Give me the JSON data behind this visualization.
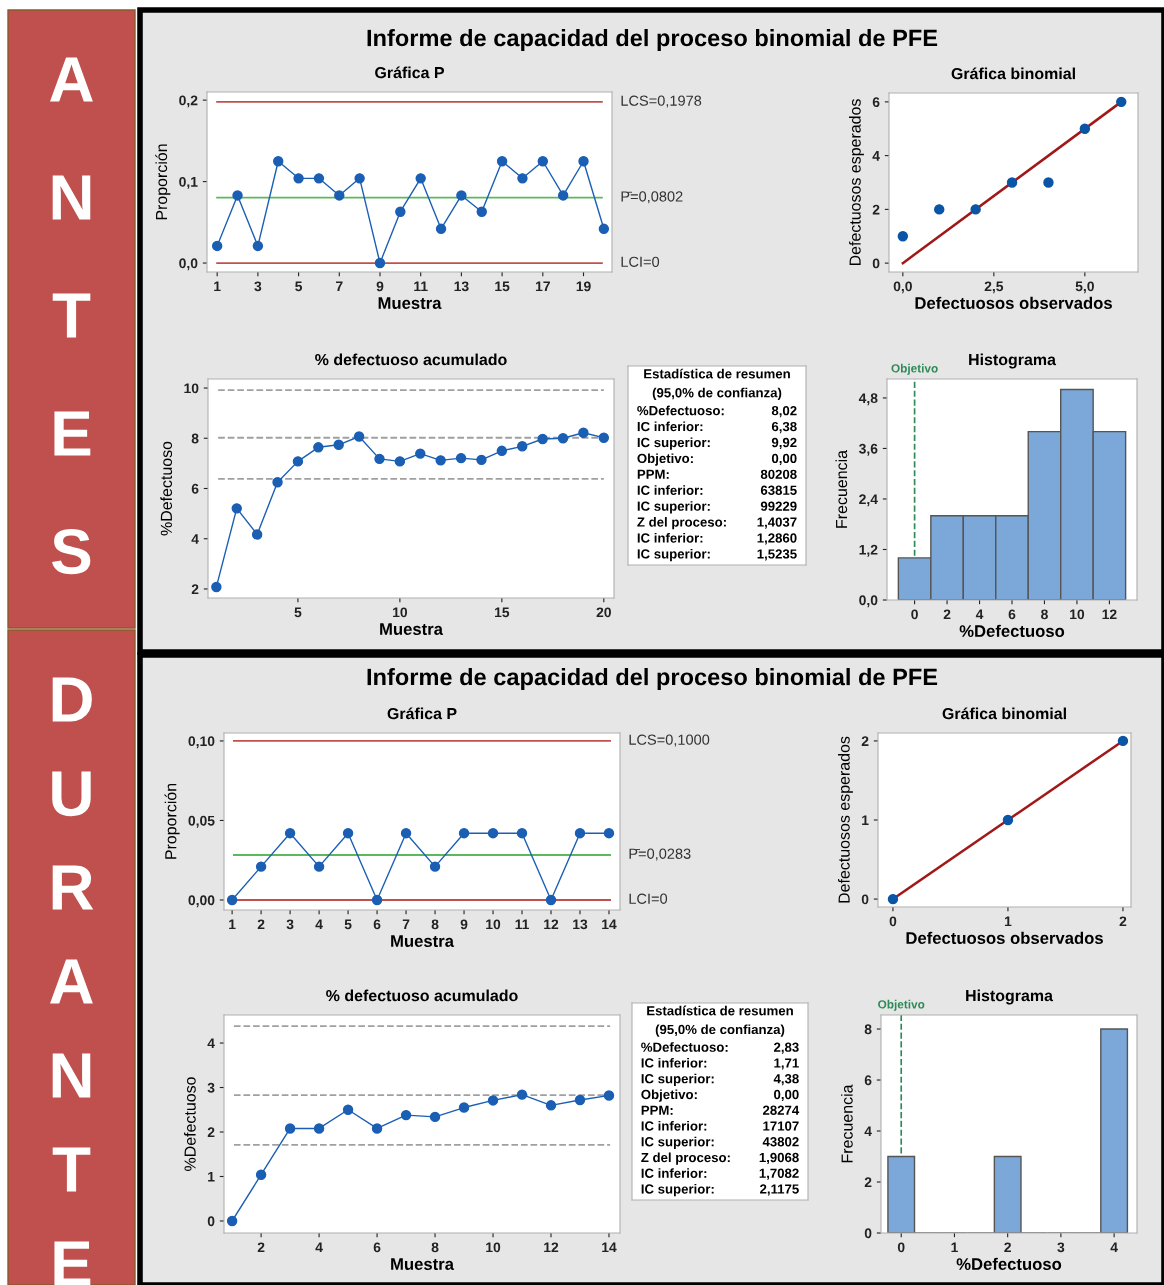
{
  "chart_data": [
    {
      "type": "other",
      "title": "Informe de capacidad del proceso binomial de PFE",
      "annotations": [
        "ANTES"
      ]
    },
    {
      "type": "line",
      "title": "Gráfica P",
      "xlabel": "Muestra",
      "ylabel": "Proporción",
      "marker": "circle",
      "line_style": "solid",
      "x": [
        1,
        2,
        3,
        4,
        5,
        6,
        7,
        8,
        9,
        10,
        11,
        12,
        13,
        14,
        15,
        16,
        17,
        18,
        19,
        20
      ],
      "series": [
        {
          "color": "#1a5fb4",
          "values": [
            0.021,
            0.083,
            0.021,
            0.125,
            0.104,
            0.104,
            0.083,
            0.104,
            0.0,
            0.063,
            0.104,
            0.042,
            0.083,
            0.063,
            0.125,
            0.104,
            0.125,
            0.083,
            0.125,
            0.042
          ]
        }
      ],
      "xlim": [
        0.5,
        20.4
      ],
      "ylim": [
        -0.011,
        0.21
      ],
      "xticks": [
        1,
        3,
        5,
        7,
        9,
        11,
        13,
        15,
        17,
        19
      ],
      "yticks": [
        {
          "value": 0,
          "label": "0,0"
        },
        {
          "value": 0.1,
          "label": "0,1"
        },
        {
          "value": 0.2,
          "label": "0,2"
        }
      ],
      "ref_lines": [
        {
          "axis": "y",
          "value": 0.1978,
          "label": "LCS=0,1978",
          "color": "#c0504d"
        },
        {
          "axis": "y",
          "value": 0.0802,
          "label": "P̄=0,0802",
          "color": "#5cb85c"
        },
        {
          "axis": "y",
          "value": 0,
          "label": "LCI=0",
          "color": "#c0504d"
        }
      ]
    },
    {
      "type": "scatter",
      "title": "Gráfica binomial",
      "xlabel": "Defectuosos observados",
      "ylabel": "Defectuosos esperados",
      "marker": "circle",
      "series": [
        {
          "color": "#0b55a6",
          "x": [
            0,
            1,
            2,
            3,
            4,
            5,
            6
          ],
          "values": [
            1,
            2,
            2,
            3,
            3,
            5,
            6
          ]
        },
        {
          "type": "line",
          "marker": "none",
          "color": "#a01818",
          "x": [
            0,
            6
          ],
          "values": [
            0,
            6
          ]
        }
      ],
      "xlim": [
        -0.38,
        6.46
      ],
      "ylim": [
        -0.33,
        6.33
      ],
      "xticks": [
        {
          "value": 0,
          "label": "0,0"
        },
        {
          "value": 2.5,
          "label": "2,5"
        },
        {
          "value": 5,
          "label": "5,0"
        }
      ],
      "yticks": [
        0,
        2,
        4,
        6
      ]
    },
    {
      "type": "line",
      "title": "% defectuoso acumulado",
      "xlabel": "Muestra",
      "ylabel": "%Defectuoso",
      "marker": "circle",
      "line_style": "solid",
      "x": [
        1,
        2,
        3,
        4,
        5,
        6,
        7,
        8,
        9,
        10,
        11,
        12,
        13,
        14,
        15,
        16,
        17,
        18,
        19,
        20
      ],
      "series": [
        {
          "color": "#1a5fb4",
          "values": [
            2.08,
            5.21,
            4.17,
            6.25,
            7.08,
            7.64,
            7.74,
            8.07,
            7.18,
            7.08,
            7.39,
            7.12,
            7.21,
            7.14,
            7.5,
            7.68,
            7.97,
            8.0,
            8.22,
            8.02
          ]
        }
      ],
      "xlim": [
        0.59,
        20.5
      ],
      "ylim": [
        1.64,
        10.36
      ],
      "xticks": [
        5,
        10,
        15,
        20
      ],
      "yticks": [
        2,
        4,
        6,
        8,
        10
      ],
      "ref_lines": [
        {
          "axis": "y",
          "value": 9.92,
          "color": "#a0a0a0",
          "line_style": "dashed"
        },
        {
          "axis": "y",
          "value": 8.02,
          "color": "#a0a0a0",
          "line_style": "dashed"
        },
        {
          "axis": "y",
          "value": 6.38,
          "color": "#a0a0a0",
          "line_style": "dashed"
        }
      ]
    },
    {
      "type": "other",
      "title": "Estadística de resumen",
      "subtitle": "(95,0% de confianza)",
      "annotations": [
        "%Defectuoso: 8,02",
        "IC inferior: 6,38",
        "IC superior: 9,92",
        "Objetivo: 0,00",
        "PPM: 80208",
        "IC inferior: 63815",
        "IC superior: 99229",
        "Z del proceso: 1,4037",
        "IC inferior: 1,2860",
        "IC superior: 1,5235"
      ]
    },
    {
      "type": "histogram",
      "title": "Histograma",
      "xlabel": "%Defectuoso",
      "ylabel": "Frecuencia",
      "color": "#7ba7d9",
      "bins": [
        -1,
        1,
        3,
        5,
        7,
        9,
        11,
        13
      ],
      "values": [
        1,
        2,
        2,
        2,
        4,
        5,
        4
      ],
      "xlim": [
        -1.7,
        13.7
      ],
      "ylim": [
        0,
        5.25
      ],
      "xticks": [
        0,
        2,
        4,
        6,
        8,
        10,
        12
      ],
      "yticks": [
        {
          "value": 0,
          "label": "0,0"
        },
        {
          "value": 1.2,
          "label": "1,2"
        },
        {
          "value": 2.4,
          "label": "2,4"
        },
        {
          "value": 3.6,
          "label": "3,6"
        },
        {
          "value": 4.8,
          "label": "4,8"
        }
      ],
      "ref_lines": [
        {
          "axis": "x",
          "value": 0,
          "label": "Objetivo",
          "color": "#2e8b57",
          "line_style": "dashed"
        }
      ]
    },
    {
      "type": "other",
      "title": "Informe de capacidad del proceso binomial de PFE",
      "annotations": [
        "DURANTE"
      ]
    },
    {
      "type": "line",
      "title": "Gráfica P",
      "xlabel": "Muestra",
      "ylabel": "Proporción",
      "marker": "circle",
      "line_style": "solid",
      "x": [
        1,
        2,
        3,
        4,
        5,
        6,
        7,
        8,
        9,
        10,
        11,
        12,
        13,
        14
      ],
      "series": [
        {
          "color": "#1a5fb4",
          "values": [
            0.0,
            0.021,
            0.042,
            0.021,
            0.042,
            0.0,
            0.042,
            0.021,
            0.042,
            0.042,
            0.042,
            0.0,
            0.042,
            0.042
          ]
        }
      ],
      "xlim": [
        0.72,
        14.38
      ],
      "ylim": [
        -0.0063,
        0.105
      ],
      "xticks": [
        1,
        2,
        3,
        4,
        5,
        6,
        7,
        8,
        9,
        10,
        11,
        12,
        13,
        14
      ],
      "yticks": [
        {
          "value": 0,
          "label": "0,00"
        },
        {
          "value": 0.05,
          "label": "0,05"
        },
        {
          "value": 0.1,
          "label": "0,10"
        }
      ],
      "ref_lines": [
        {
          "axis": "y",
          "value": 0.1,
          "label": "LCS=0,1000",
          "color": "#c0504d"
        },
        {
          "axis": "y",
          "value": 0.0283,
          "label": "P̄=0,0283",
          "color": "#5cb85c"
        },
        {
          "axis": "y",
          "value": 0,
          "label": "LCI=0",
          "color": "#c0504d"
        }
      ]
    },
    {
      "type": "scatter",
      "title": "Gráfica binomial",
      "xlabel": "Defectuosos observados",
      "ylabel": "Defectuosos esperados",
      "marker": "circle",
      "series": [
        {
          "color": "#0b55a6",
          "x": [
            0,
            1,
            2
          ],
          "values": [
            0,
            1,
            2
          ]
        },
        {
          "type": "line",
          "marker": "none",
          "color": "#a01818",
          "x": [
            0,
            2
          ],
          "values": [
            0,
            2
          ]
        }
      ],
      "xlim": [
        -0.13,
        2.07
      ],
      "ylim": [
        -0.1,
        2.1
      ],
      "xticks": [
        0,
        1,
        2
      ],
      "yticks": [
        0,
        1,
        2
      ]
    },
    {
      "type": "line",
      "title": "% defectuoso acumulado",
      "xlabel": "Muestra",
      "ylabel": "%Defectuoso",
      "marker": "circle",
      "line_style": "solid",
      "x": [
        1,
        2,
        3,
        4,
        5,
        6,
        7,
        8,
        9,
        10,
        11,
        12,
        13,
        14
      ],
      "series": [
        {
          "color": "#1a5fb4",
          "values": [
            0.0,
            1.04,
            2.08,
            2.08,
            2.5,
            2.08,
            2.38,
            2.34,
            2.55,
            2.71,
            2.84,
            2.6,
            2.72,
            2.82
          ]
        }
      ],
      "xlim": [
        0.72,
        14.38
      ],
      "ylim": [
        -0.27,
        4.63
      ],
      "xticks": [
        2,
        4,
        6,
        8,
        10,
        12,
        14
      ],
      "yticks": [
        0,
        1,
        2,
        3,
        4
      ],
      "ref_lines": [
        {
          "axis": "y",
          "value": 4.38,
          "color": "#a0a0a0",
          "line_style": "dashed"
        },
        {
          "axis": "y",
          "value": 2.83,
          "color": "#a0a0a0",
          "line_style": "dashed"
        },
        {
          "axis": "y",
          "value": 1.71,
          "color": "#a0a0a0",
          "line_style": "dashed"
        }
      ]
    },
    {
      "type": "other",
      "title": "Estadística de resumen",
      "subtitle": "(95,0% de confianza)",
      "annotations": [
        "%Defectuoso: 2,83",
        "IC inferior: 1,71",
        "IC superior: 4,38",
        "Objetivo: 0,00",
        "PPM: 28274",
        "IC inferior: 17107",
        "IC superior: 43802",
        "Z del proceso: 1,9068",
        "IC inferior: 1,7082",
        "IC superior: 2,1175"
      ]
    },
    {
      "type": "histogram",
      "title": "Histograma",
      "xlabel": "%Defectuoso",
      "ylabel": "Frecuencia",
      "color": "#7ba7d9",
      "bins": [
        -0.25,
        0.25,
        0.75,
        1.25,
        1.75,
        2.25,
        2.75,
        3.25,
        3.75,
        4.25
      ],
      "values": [
        3,
        0,
        0,
        0,
        3,
        0,
        0,
        0,
        8
      ],
      "xlim": [
        -0.38,
        4.43
      ],
      "ylim": [
        0,
        8.55
      ],
      "xticks": [
        0,
        1,
        2,
        3,
        4
      ],
      "yticks": [
        0,
        2,
        4,
        6,
        8
      ],
      "ref_lines": [
        {
          "axis": "x",
          "value": 0,
          "label": "Objetivo",
          "color": "#2e8b57",
          "line_style": "dashed"
        }
      ]
    }
  ]
}
